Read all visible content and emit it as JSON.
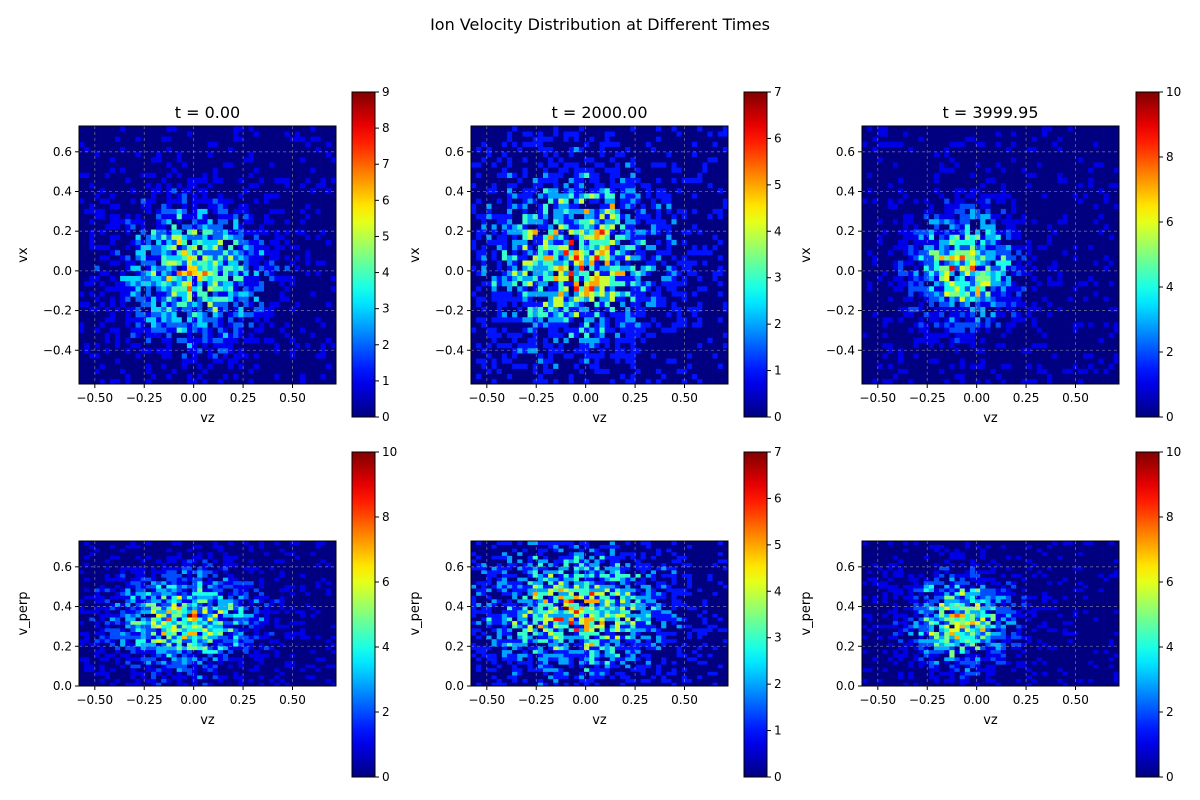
{
  "figure": {
    "title": "Ion Velocity Distribution at Different Times"
  },
  "chart_data": [
    {
      "type": "heatmap",
      "panel": "top-left",
      "title": "t = 0.00",
      "xlabel": "vz",
      "ylabel": "vx",
      "xlim": [
        -0.58,
        0.72
      ],
      "ylim": [
        -0.57,
        0.73
      ],
      "xticks": [
        -0.5,
        -0.25,
        0.0,
        0.25,
        0.5
      ],
      "xtick_labels": [
        "−0.50",
        "−0.25",
        "0.00",
        "0.25",
        "0.50"
      ],
      "yticks": [
        -0.4,
        -0.2,
        0.0,
        0.2,
        0.4,
        0.6
      ],
      "ytick_labels": [
        "−0.4",
        "−0.2",
        "0.0",
        "0.2",
        "0.4",
        "0.6"
      ],
      "bins": [
        50,
        50
      ],
      "center": [
        0.0,
        0.0
      ],
      "spread": [
        0.2,
        0.2
      ],
      "peak": 9,
      "colorbar": {
        "min": 0,
        "max": 9,
        "ticks": [
          0,
          1,
          2,
          3,
          4,
          5,
          6,
          7,
          8,
          9
        ]
      },
      "colormap": "jet",
      "grid": true
    },
    {
      "type": "heatmap",
      "panel": "top-center",
      "title": "t = 2000.00",
      "xlabel": "vz",
      "ylabel": "vx",
      "xlim": [
        -0.58,
        0.72
      ],
      "ylim": [
        -0.57,
        0.73
      ],
      "xticks": [
        -0.5,
        -0.25,
        0.0,
        0.25,
        0.5
      ],
      "xtick_labels": [
        "−0.50",
        "−0.25",
        "0.00",
        "0.25",
        "0.50"
      ],
      "yticks": [
        -0.4,
        -0.2,
        0.0,
        0.2,
        0.4,
        0.6
      ],
      "ytick_labels": [
        "−0.4",
        "−0.2",
        "0.0",
        "0.2",
        "0.4",
        "0.6"
      ],
      "bins": [
        50,
        50
      ],
      "center": [
        -0.05,
        0.05
      ],
      "spread": [
        0.25,
        0.25
      ],
      "peak": 7,
      "colorbar": {
        "min": 0,
        "max": 7,
        "ticks": [
          0,
          1,
          2,
          3,
          4,
          5,
          6,
          7
        ]
      },
      "colormap": "jet",
      "grid": true
    },
    {
      "type": "heatmap",
      "panel": "top-right",
      "title": "t = 3999.95",
      "xlabel": "vz",
      "ylabel": "vx",
      "xlim": [
        -0.58,
        0.72
      ],
      "ylim": [
        -0.57,
        0.73
      ],
      "xticks": [
        -0.5,
        -0.25,
        0.0,
        0.25,
        0.5
      ],
      "xtick_labels": [
        "−0.50",
        "−0.25",
        "0.00",
        "0.25",
        "0.50"
      ],
      "yticks": [
        -0.4,
        -0.2,
        0.0,
        0.2,
        0.4,
        0.6
      ],
      "ytick_labels": [
        "−0.4",
        "−0.2",
        "0.0",
        "0.2",
        "0.4",
        "0.6"
      ],
      "bins": [
        50,
        50
      ],
      "center": [
        -0.06,
        0.02
      ],
      "spread": [
        0.15,
        0.17
      ],
      "peak": 10,
      "colorbar": {
        "min": 0,
        "max": 10,
        "ticks": [
          0,
          2,
          4,
          6,
          8,
          10
        ]
      },
      "colormap": "jet",
      "grid": true
    },
    {
      "type": "heatmap",
      "panel": "bottom-left",
      "title": "",
      "xlabel": "vz",
      "ylabel": "v_perp",
      "xlim": [
        -0.58,
        0.72
      ],
      "ylim": [
        0.0,
        0.73
      ],
      "xticks": [
        -0.5,
        -0.25,
        0.0,
        0.25,
        0.5
      ],
      "xtick_labels": [
        "−0.50",
        "−0.25",
        "0.00",
        "0.25",
        "0.50"
      ],
      "yticks": [
        0.0,
        0.2,
        0.4,
        0.6
      ],
      "ytick_labels": [
        "0.0",
        "0.2",
        "0.4",
        "0.6"
      ],
      "bins": [
        50,
        40
      ],
      "center": [
        -0.05,
        0.33
      ],
      "spread": [
        0.22,
        0.14
      ],
      "peak": 10,
      "colorbar": {
        "min": 0,
        "max": 10,
        "ticks": [
          0,
          2,
          4,
          6,
          8,
          10
        ]
      },
      "colormap": "jet",
      "grid": true
    },
    {
      "type": "heatmap",
      "panel": "bottom-center",
      "title": "",
      "xlabel": "vz",
      "ylabel": "v_perp",
      "xlim": [
        -0.58,
        0.72
      ],
      "ylim": [
        0.0,
        0.73
      ],
      "xticks": [
        -0.5,
        -0.25,
        0.0,
        0.25,
        0.5
      ],
      "xtick_labels": [
        "−0.50",
        "−0.25",
        "0.00",
        "0.25",
        "0.50"
      ],
      "yticks": [
        0.0,
        0.2,
        0.4,
        0.6
      ],
      "ytick_labels": [
        "0.0",
        "0.2",
        "0.4",
        "0.6"
      ],
      "bins": [
        50,
        40
      ],
      "center": [
        -0.05,
        0.38
      ],
      "spread": [
        0.26,
        0.18
      ],
      "peak": 7,
      "colorbar": {
        "min": 0,
        "max": 7,
        "ticks": [
          0,
          1,
          2,
          3,
          4,
          5,
          6,
          7
        ]
      },
      "colormap": "jet",
      "grid": true
    },
    {
      "type": "heatmap",
      "panel": "bottom-right",
      "title": "",
      "xlabel": "vz",
      "ylabel": "v_perp",
      "xlim": [
        -0.58,
        0.72
      ],
      "ylim": [
        0.0,
        0.73
      ],
      "xticks": [
        -0.5,
        -0.25,
        0.0,
        0.25,
        0.5
      ],
      "xtick_labels": [
        "−0.50",
        "−0.25",
        "0.00",
        "0.25",
        "0.50"
      ],
      "yticks": [
        0.0,
        0.2,
        0.4,
        0.6
      ],
      "ytick_labels": [
        "0.0",
        "0.2",
        "0.4",
        "0.6"
      ],
      "bins": [
        50,
        40
      ],
      "center": [
        -0.08,
        0.33
      ],
      "spread": [
        0.16,
        0.13
      ],
      "peak": 10,
      "colorbar": {
        "min": 0,
        "max": 10,
        "ticks": [
          0,
          2,
          4,
          6,
          8,
          10
        ]
      },
      "colormap": "jet",
      "grid": true
    }
  ]
}
